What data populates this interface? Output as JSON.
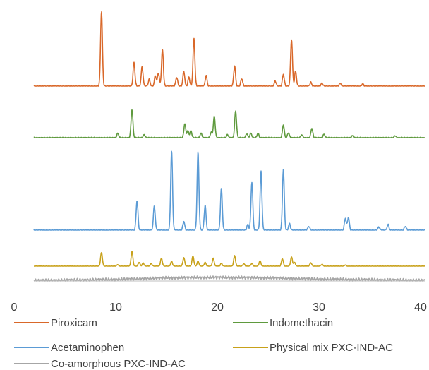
{
  "chart_data": {
    "type": "line",
    "xlabel": "",
    "ylabel": "",
    "xlim": [
      0,
      40
    ],
    "x_ticks": [
      0,
      10,
      20,
      30,
      40
    ],
    "x_tick_labels": [
      "0",
      "10",
      "20",
      "30",
      "40"
    ],
    "grid": false,
    "legend_placement": "bottom",
    "series": [
      {
        "name": "Piroxicam",
        "color": "#d9682a",
        "baseline": 92,
        "peaks": [
          {
            "x": 8.6,
            "h": 100
          },
          {
            "x": 11.8,
            "h": 32
          },
          {
            "x": 12.6,
            "h": 26
          },
          {
            "x": 13.3,
            "h": 9
          },
          {
            "x": 13.9,
            "h": 14
          },
          {
            "x": 14.2,
            "h": 18
          },
          {
            "x": 14.6,
            "h": 49
          },
          {
            "x": 16.0,
            "h": 12
          },
          {
            "x": 16.7,
            "h": 20
          },
          {
            "x": 17.2,
            "h": 12
          },
          {
            "x": 17.7,
            "h": 64
          },
          {
            "x": 18.9,
            "h": 14
          },
          {
            "x": 21.7,
            "h": 27
          },
          {
            "x": 22.4,
            "h": 10
          },
          {
            "x": 25.7,
            "h": 7
          },
          {
            "x": 26.5,
            "h": 16
          },
          {
            "x": 27.3,
            "h": 63
          },
          {
            "x": 27.7,
            "h": 20
          },
          {
            "x": 29.2,
            "h": 5
          },
          {
            "x": 30.3,
            "h": 4
          },
          {
            "x": 32.1,
            "h": 4
          },
          {
            "x": 34.3,
            "h": 3
          }
        ]
      },
      {
        "name": "Indomethacin",
        "color": "#5f9a3e",
        "baseline": 92,
        "peaks": [
          {
            "x": 10.2,
            "h": 9
          },
          {
            "x": 11.6,
            "h": 57
          },
          {
            "x": 12.8,
            "h": 6
          },
          {
            "x": 16.8,
            "h": 28
          },
          {
            "x": 17.1,
            "h": 14
          },
          {
            "x": 17.4,
            "h": 14
          },
          {
            "x": 18.4,
            "h": 9
          },
          {
            "x": 19.4,
            "h": 11
          },
          {
            "x": 19.7,
            "h": 43
          },
          {
            "x": 21.0,
            "h": 6
          },
          {
            "x": 21.8,
            "h": 54
          },
          {
            "x": 22.9,
            "h": 8
          },
          {
            "x": 23.3,
            "h": 9
          },
          {
            "x": 24.0,
            "h": 9
          },
          {
            "x": 26.5,
            "h": 26
          },
          {
            "x": 27.0,
            "h": 10
          },
          {
            "x": 28.3,
            "h": 6
          },
          {
            "x": 29.3,
            "h": 19
          },
          {
            "x": 30.5,
            "h": 7
          },
          {
            "x": 33.3,
            "h": 4
          },
          {
            "x": 37.5,
            "h": 4
          }
        ]
      },
      {
        "name": "Acetaminophen",
        "color": "#5b9bd5",
        "baseline": 92,
        "peaks": [
          {
            "x": 12.1,
            "h": 37
          },
          {
            "x": 13.8,
            "h": 30
          },
          {
            "x": 15.5,
            "h": 99
          },
          {
            "x": 16.7,
            "h": 11
          },
          {
            "x": 18.1,
            "h": 97
          },
          {
            "x": 18.8,
            "h": 31
          },
          {
            "x": 20.4,
            "h": 52
          },
          {
            "x": 23.0,
            "h": 7
          },
          {
            "x": 23.4,
            "h": 60
          },
          {
            "x": 24.3,
            "h": 73
          },
          {
            "x": 26.5,
            "h": 76
          },
          {
            "x": 27.1,
            "h": 8
          },
          {
            "x": 29.0,
            "h": 5
          },
          {
            "x": 32.6,
            "h": 15
          },
          {
            "x": 32.9,
            "h": 16
          },
          {
            "x": 35.9,
            "h": 4
          },
          {
            "x": 36.8,
            "h": 7
          },
          {
            "x": 38.5,
            "h": 5
          }
        ]
      },
      {
        "name": "Physical mix PXC-IND-AC",
        "color": "#c8a11a",
        "baseline": 92,
        "peaks": [
          {
            "x": 8.6,
            "h": 43
          },
          {
            "x": 10.2,
            "h": 5
          },
          {
            "x": 11.6,
            "h": 46
          },
          {
            "x": 12.3,
            "h": 12
          },
          {
            "x": 12.7,
            "h": 10
          },
          {
            "x": 13.5,
            "h": 8
          },
          {
            "x": 14.5,
            "h": 25
          },
          {
            "x": 15.5,
            "h": 15
          },
          {
            "x": 16.7,
            "h": 27
          },
          {
            "x": 17.6,
            "h": 32
          },
          {
            "x": 18.1,
            "h": 16
          },
          {
            "x": 18.8,
            "h": 12
          },
          {
            "x": 19.6,
            "h": 25
          },
          {
            "x": 20.4,
            "h": 9
          },
          {
            "x": 21.7,
            "h": 33
          },
          {
            "x": 22.6,
            "h": 8
          },
          {
            "x": 23.4,
            "h": 9
          },
          {
            "x": 24.2,
            "h": 17
          },
          {
            "x": 26.4,
            "h": 24
          },
          {
            "x": 27.3,
            "h": 29
          },
          {
            "x": 27.6,
            "h": 12
          },
          {
            "x": 29.2,
            "h": 11
          },
          {
            "x": 30.3,
            "h": 6
          },
          {
            "x": 32.6,
            "h": 4
          }
        ]
      },
      {
        "name": "Co-amorphous PXC-IND-AC",
        "color": "#a6a6a6",
        "baseline": 92,
        "peaks": [],
        "halo": [
          [
            2,
            0.3
          ],
          [
            10,
            1.0
          ],
          [
            15,
            2.0
          ],
          [
            20,
            2.3
          ],
          [
            25,
            2.0
          ],
          [
            30,
            1.2
          ],
          [
            40,
            0.4
          ]
        ]
      }
    ]
  }
}
